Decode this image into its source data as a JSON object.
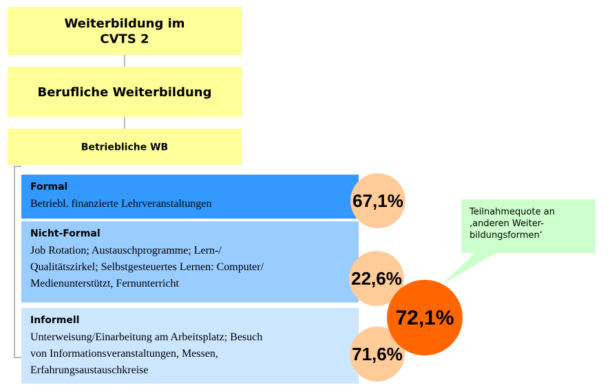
{
  "boxes": [
    {
      "lines": [
        "Weiterbildung im",
        "CVTS 2"
      ]
    },
    {
      "lines": [
        "Berufliche Weiterbildung"
      ]
    },
    {
      "lines": [
        "Betriebliche WB"
      ]
    }
  ],
  "categories": [
    {
      "title": "Formal",
      "lines": [
        "Betriebl. finanzierte Lehrveranstaltungen"
      ],
      "rate": "67,1%"
    },
    {
      "title": "Nicht-Formal",
      "lines": [
        "Job Rotation; Austauschprogramme; Lern-/",
        "Qualitätszirkel; Selbstgesteuertes Lernen: Computer/",
        "Medienunterstützt, Fernunterricht"
      ],
      "rate": "22,6%"
    },
    {
      "title": "Informell",
      "lines": [
        "Unterweisung/Einarbeitung am Arbeitsplatz; Besuch",
        "von Informationsveranstaltungen, Messen,",
        "Erfahrungsaustauschkreise"
      ],
      "rate": "71,6%"
    }
  ],
  "total": {
    "rate": "72,1%",
    "note": [
      "Teilnahmequote an",
      "‚anderen Weiter-",
      "bildungsformen‘"
    ]
  }
}
